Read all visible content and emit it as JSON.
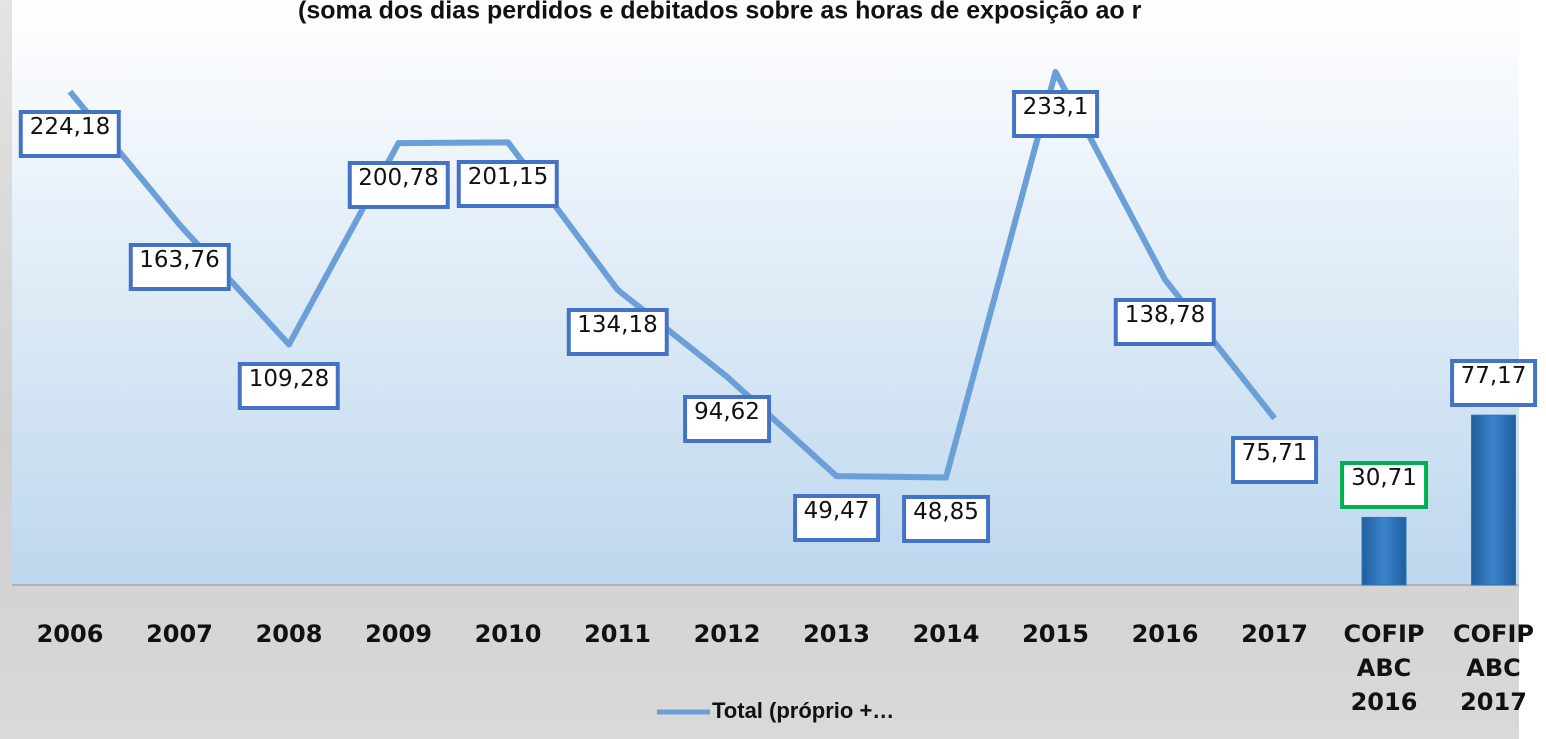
{
  "chart_data": {
    "type": "combo",
    "title": "(soma dos dias perdidos e debitados sobre as horas de exposição ao r",
    "categories": [
      "2006",
      "2007",
      "2008",
      "2009",
      "2010",
      "2011",
      "2012",
      "2013",
      "2014",
      "2015",
      "2016",
      "2017",
      "COFIP ABC 2016",
      "COFIP ABC 2017"
    ],
    "series": [
      {
        "name": "Total (próprio +…",
        "type": "line",
        "color": "#6a9fd8",
        "label_colors": [
          "#4472c4",
          "#4472c4",
          "#4472c4",
          "#4472c4",
          "#4472c4",
          "#4472c4",
          "#4472c4",
          "#4472c4",
          "#4472c4",
          "#4472c4",
          "#4472c4",
          "#4472c4",
          null,
          null
        ],
        "values": [
          224.18,
          163.76,
          109.28,
          200.78,
          201.15,
          134.18,
          94.62,
          49.47,
          48.85,
          233.1,
          138.78,
          75.71,
          null,
          null
        ],
        "value_labels": [
          "224,18",
          "163,76",
          "109,28",
          "200,78",
          "201,15",
          "134,18",
          "94,62",
          "49,47",
          "48,85",
          "233,1",
          "138,78",
          "75,71",
          null,
          null
        ]
      },
      {
        "type": "bar",
        "color": "#2e75b6",
        "label_colors": [
          null,
          null,
          null,
          null,
          null,
          null,
          null,
          null,
          null,
          null,
          null,
          null,
          "#00b050",
          "#4472c4"
        ],
        "values": [
          null,
          null,
          null,
          null,
          null,
          null,
          null,
          null,
          null,
          null,
          null,
          null,
          30.71,
          77.17
        ],
        "value_labels": [
          null,
          null,
          null,
          null,
          null,
          null,
          null,
          null,
          null,
          null,
          null,
          null,
          "30,71",
          "77,17"
        ]
      }
    ]
  }
}
